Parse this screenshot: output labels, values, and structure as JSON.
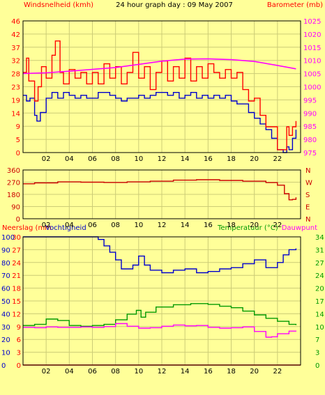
{
  "colors": {
    "background": "#ffff99",
    "grid": "#cccc77",
    "frame": "#000000",
    "wind": "#0000cc",
    "gust": "#ff0000",
    "barometer": "#ff00ff",
    "direction": "#cc0000",
    "rain": "#ff0000",
    "humidity": "#0000cc",
    "temperature": "#009900",
    "dewpoint": "#ff00ff",
    "title_red": "#ff0000",
    "title_black": "#000000",
    "title_green": "#009900",
    "title_magenta": "#ff00ff"
  },
  "header": {
    "left_label": "Windsnelheid (kmh)",
    "title": "24 hour graph day : 09 May 2007",
    "right_label": "Barometer (mb)"
  },
  "middle": {
    "compass_labels": [
      "N",
      "W",
      "S",
      "E",
      "N"
    ]
  },
  "lower_header": {
    "left_label_1": "Neerslag (mm",
    "left_label_2": "Vochtigheid",
    "right_label_1": "Temperatuur (°C)",
    "right_label_2": "Dauwpunt"
  },
  "chart_data": [
    {
      "type": "line",
      "xticks": [
        "02",
        "04",
        "06",
        "08",
        "10",
        "12",
        "14",
        "16",
        "18",
        "20",
        "22"
      ],
      "xlim": [
        0,
        24
      ],
      "left_axis": {
        "label": "Windsnelheid (kmh)",
        "ticks": [
          "0",
          "5",
          "9",
          "14",
          "19",
          "23",
          "28",
          "32",
          "37",
          "42",
          "46"
        ],
        "ylim": [
          0,
          46
        ]
      },
      "right_axis": {
        "label": "Barometer (mb)",
        "ticks": [
          "975",
          "980",
          "985",
          "990",
          "995",
          "1000",
          "1005",
          "1010",
          "1015",
          "1020",
          "1025"
        ],
        "ylim": [
          975,
          1025
        ]
      },
      "series": [
        {
          "axis": "left",
          "points": [
            [
              0.0,
              20
            ],
            [
              0.3,
              18
            ],
            [
              0.6,
              19
            ],
            [
              1.0,
              13
            ],
            [
              1.2,
              11
            ],
            [
              1.5,
              14
            ],
            [
              2.0,
              19
            ],
            [
              2.5,
              21
            ],
            [
              3.0,
              19
            ],
            [
              3.5,
              21
            ],
            [
              4.0,
              20
            ],
            [
              4.5,
              19
            ],
            [
              5.0,
              20
            ],
            [
              5.5,
              19
            ],
            [
              6.0,
              19
            ],
            [
              6.5,
              21
            ],
            [
              7.0,
              21
            ],
            [
              7.5,
              20
            ],
            [
              8.0,
              19
            ],
            [
              8.5,
              18
            ],
            [
              9.0,
              19
            ],
            [
              9.5,
              19
            ],
            [
              10.0,
              20
            ],
            [
              10.5,
              19
            ],
            [
              11.0,
              20
            ],
            [
              11.5,
              21
            ],
            [
              12.0,
              21
            ],
            [
              12.5,
              20
            ],
            [
              13.0,
              21
            ],
            [
              13.5,
              19
            ],
            [
              14.0,
              20
            ],
            [
              14.5,
              21
            ],
            [
              15.0,
              19
            ],
            [
              15.5,
              20
            ],
            [
              16.0,
              19
            ],
            [
              16.5,
              20
            ],
            [
              17.0,
              19
            ],
            [
              17.5,
              20
            ],
            [
              18.0,
              18
            ],
            [
              18.5,
              17
            ],
            [
              19.0,
              17
            ],
            [
              19.5,
              14
            ],
            [
              20.0,
              12
            ],
            [
              20.5,
              10
            ],
            [
              21.0,
              8
            ],
            [
              21.5,
              5
            ],
            [
              22.0,
              1
            ],
            [
              22.5,
              0
            ],
            [
              22.8,
              2
            ],
            [
              23.0,
              1
            ],
            [
              23.3,
              5
            ],
            [
              23.6,
              8
            ]
          ]
        },
        {
          "axis": "left",
          "points": [
            [
              0.0,
              28
            ],
            [
              0.3,
              33
            ],
            [
              0.5,
              25
            ],
            [
              1.0,
              18
            ],
            [
              1.3,
              23
            ],
            [
              1.6,
              30
            ],
            [
              2.0,
              26
            ],
            [
              2.5,
              34
            ],
            [
              2.8,
              39
            ],
            [
              3.2,
              28
            ],
            [
              3.5,
              24
            ],
            [
              4.0,
              29
            ],
            [
              4.5,
              26
            ],
            [
              5.0,
              28
            ],
            [
              5.5,
              24
            ],
            [
              6.0,
              28
            ],
            [
              6.5,
              24
            ],
            [
              7.0,
              31
            ],
            [
              7.5,
              26
            ],
            [
              8.0,
              30
            ],
            [
              8.5,
              24
            ],
            [
              9.0,
              28
            ],
            [
              9.5,
              35
            ],
            [
              10.0,
              26
            ],
            [
              10.5,
              30
            ],
            [
              11.0,
              22
            ],
            [
              11.5,
              28
            ],
            [
              12.0,
              32
            ],
            [
              12.5,
              25
            ],
            [
              13.0,
              30
            ],
            [
              13.5,
              26
            ],
            [
              14.0,
              33
            ],
            [
              14.5,
              25
            ],
            [
              15.0,
              30
            ],
            [
              15.5,
              26
            ],
            [
              16.0,
              31
            ],
            [
              16.5,
              28
            ],
            [
              17.0,
              26
            ],
            [
              17.5,
              29
            ],
            [
              18.0,
              26
            ],
            [
              18.5,
              28
            ],
            [
              19.0,
              22
            ],
            [
              19.5,
              18
            ],
            [
              20.0,
              19
            ],
            [
              20.5,
              13
            ],
            [
              21.0,
              9
            ],
            [
              21.5,
              9
            ],
            [
              22.0,
              1
            ],
            [
              22.5,
              1
            ],
            [
              22.8,
              9
            ],
            [
              23.0,
              6
            ],
            [
              23.3,
              9
            ],
            [
              23.6,
              11
            ]
          ]
        },
        {
          "axis": "right",
          "points": [
            [
              0.0,
              1005.0
            ],
            [
              2.0,
              1005.3
            ],
            [
              4.0,
              1005.9
            ],
            [
              6.0,
              1006.6
            ],
            [
              8.0,
              1007.3
            ],
            [
              10.0,
              1008.5
            ],
            [
              12.0,
              1009.7
            ],
            [
              14.0,
              1010.5
            ],
            [
              16.0,
              1010.6
            ],
            [
              18.0,
              1010.3
            ],
            [
              20.0,
              1009.6
            ],
            [
              22.0,
              1008.1
            ],
            [
              23.6,
              1006.8
            ]
          ]
        }
      ]
    },
    {
      "type": "line",
      "xticks": [
        "02",
        "04",
        "06",
        "08",
        "10",
        "12",
        "14",
        "16",
        "18",
        "20",
        "22"
      ],
      "xlim": [
        0,
        24
      ],
      "left_axis": {
        "ticks": [
          "0",
          "90",
          "180",
          "270",
          "360"
        ],
        "ylim": [
          0,
          360
        ]
      },
      "right_axis": {
        "ticks": [
          "N",
          "W",
          "S",
          "E",
          "N"
        ]
      },
      "series": [
        {
          "axis": "left",
          "points": [
            [
              0.0,
              258
            ],
            [
              1.0,
              265
            ],
            [
              3.0,
              272
            ],
            [
              5.0,
              270
            ],
            [
              7.0,
              268
            ],
            [
              9.0,
              272
            ],
            [
              11.0,
              277
            ],
            [
              13.0,
              285
            ],
            [
              15.0,
              288
            ],
            [
              17.0,
              283
            ],
            [
              19.0,
              277
            ],
            [
              21.0,
              267
            ],
            [
              22.0,
              248
            ],
            [
              22.6,
              185
            ],
            [
              23.0,
              140
            ],
            [
              23.3,
              143
            ],
            [
              23.6,
              158
            ]
          ]
        }
      ]
    },
    {
      "type": "line",
      "xticks": [
        "02",
        "04",
        "06",
        "08",
        "10",
        "12",
        "14",
        "16",
        "18",
        "20",
        "22"
      ],
      "xlim": [
        0,
        24
      ],
      "left_axis": {
        "ticks_rain": [
          "0",
          "3",
          "6",
          "9",
          "12",
          "15",
          "18",
          "21",
          "24",
          "27",
          "30"
        ],
        "ticks_humidity": [
          "0",
          "10",
          "20",
          "30",
          "40",
          "50",
          "60",
          "70",
          "80",
          "90",
          "100"
        ],
        "ylim": [
          0,
          100
        ]
      },
      "right_axis": {
        "ticks": [
          "0",
          "3",
          "7",
          "10",
          "14",
          "17",
          "20",
          "24",
          "27",
          "31",
          "34"
        ],
        "ylim": [
          0,
          34
        ]
      },
      "series": [
        {
          "axis": "humidity",
          "points": [
            [
              0.0,
              100
            ],
            [
              6.0,
              100
            ],
            [
              6.5,
              98
            ],
            [
              7.0,
              93
            ],
            [
              7.5,
              88
            ],
            [
              8.0,
              82
            ],
            [
              8.5,
              75
            ],
            [
              9.0,
              75
            ],
            [
              9.5,
              78
            ],
            [
              10.0,
              85
            ],
            [
              10.5,
              78
            ],
            [
              11.0,
              74
            ],
            [
              12.0,
              72
            ],
            [
              13.0,
              74
            ],
            [
              14.0,
              75
            ],
            [
              15.0,
              72
            ],
            [
              16.0,
              73
            ],
            [
              17.0,
              75
            ],
            [
              18.0,
              76
            ],
            [
              19.0,
              79
            ],
            [
              20.0,
              82
            ],
            [
              21.0,
              76
            ],
            [
              21.5,
              76
            ],
            [
              22.0,
              80
            ],
            [
              22.5,
              86
            ],
            [
              23.0,
              90
            ],
            [
              23.6,
              91
            ]
          ]
        },
        {
          "axis": "right",
          "points": [
            [
              0.0,
              10.5
            ],
            [
              1.0,
              10.8
            ],
            [
              2.0,
              12.2
            ],
            [
              3.0,
              11.8
            ],
            [
              4.0,
              10.5
            ],
            [
              5.0,
              10.3
            ],
            [
              6.0,
              10.5
            ],
            [
              7.0,
              10.8
            ],
            [
              8.0,
              12.0
            ],
            [
              9.0,
              13.5
            ],
            [
              9.8,
              14.5
            ],
            [
              10.2,
              12.7
            ],
            [
              10.6,
              14.0
            ],
            [
              11.5,
              15.4
            ],
            [
              13.0,
              16.0
            ],
            [
              14.5,
              16.3
            ],
            [
              16.0,
              16.1
            ],
            [
              17.0,
              15.6
            ],
            [
              18.0,
              15.2
            ],
            [
              19.0,
              14.3
            ],
            [
              20.0,
              13.3
            ],
            [
              21.0,
              12.4
            ],
            [
              22.0,
              11.6
            ],
            [
              23.0,
              10.8
            ],
            [
              23.6,
              10.6
            ]
          ]
        },
        {
          "axis": "right",
          "points": [
            [
              0.0,
              10.0
            ],
            [
              1.0,
              9.9
            ],
            [
              2.0,
              10.1
            ],
            [
              3.0,
              10.0
            ],
            [
              4.0,
              10.0
            ],
            [
              5.0,
              10.1
            ],
            [
              6.0,
              10.0
            ],
            [
              7.0,
              10.2
            ],
            [
              8.0,
              11.0
            ],
            [
              9.0,
              10.3
            ],
            [
              10.0,
              9.8
            ],
            [
              11.0,
              9.9
            ],
            [
              12.0,
              10.3
            ],
            [
              13.0,
              10.6
            ],
            [
              14.0,
              10.4
            ],
            [
              15.0,
              10.5
            ],
            [
              16.0,
              10.0
            ],
            [
              17.0,
              9.8
            ],
            [
              18.0,
              9.9
            ],
            [
              19.0,
              10.1
            ],
            [
              20.0,
              8.9
            ],
            [
              21.0,
              7.4
            ],
            [
              21.5,
              7.5
            ],
            [
              22.0,
              8.3
            ],
            [
              23.0,
              9.0
            ],
            [
              23.6,
              8.9
            ]
          ]
        },
        {
          "axis": "rain",
          "points": [
            [
              0,
              0
            ],
            [
              24,
              0
            ]
          ]
        }
      ]
    }
  ]
}
